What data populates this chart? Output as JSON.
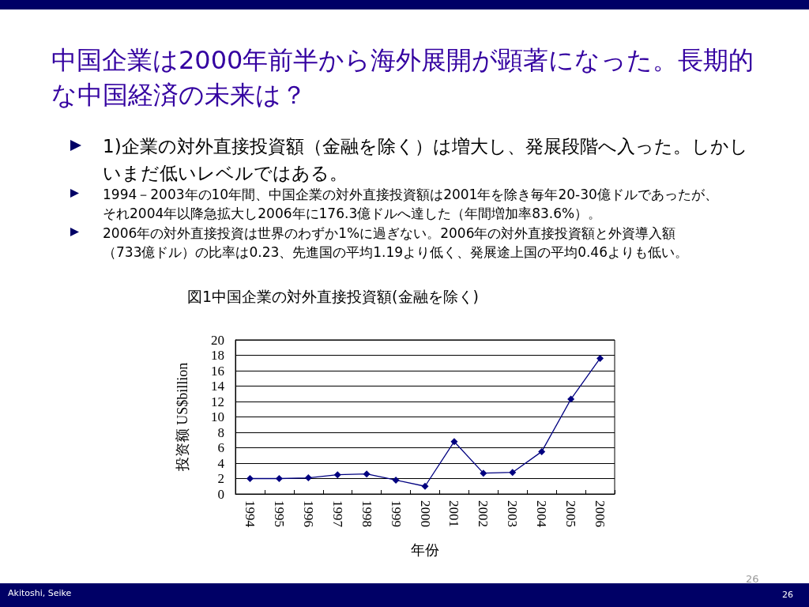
{
  "chart_data": {
    "type": "line",
    "title": "中国企業は2000年前半から海外展開が顕著になった。長期的な中国経済の未来は？",
    "subtitle": "図1中国企業の対外直接投資額(金融を除く)",
    "annotations": [
      "1)企業の対外直接投資額（金融を除く）は増大し、発展段階へ入った。しかしいまだ低いレベルではある。",
      "1994－2003年の10年間、中国企業の対外直接投資額は2001年を除き毎年20-30億ドルであったが、それ2004年以降急拡大し2006年に176.3億ドルへ達した（年間増加率83.6%）。",
      "2006年の対外直接投資は世界のわずか1%に過ぎない。2006年の対外直接投資額と外資導入額（733億ドル）の比率は0.23、先進国の平均1.19より低く、発展途上国の平均0.46よりも低い。",
      "Akitoshi, Seike",
      "26",
      "26"
    ],
    "xlabel": "年份",
    "ylabel": "投资额 US$billion",
    "categories": [
      "1994",
      "1995",
      "1996",
      "1997",
      "1998",
      "1999",
      "2000",
      "2001",
      "2002",
      "2003",
      "2004",
      "2005",
      "2006"
    ],
    "series": [
      {
        "color": "#000080",
        "values": [
          2.0,
          2.0,
          2.1,
          2.5,
          2.6,
          1.8,
          1.0,
          6.8,
          2.7,
          2.8,
          5.5,
          12.3,
          17.6
        ]
      }
    ],
    "ylim": [
      0,
      20
    ],
    "yticks": [
      0,
      2,
      4,
      6,
      8,
      10,
      12,
      14,
      16,
      18,
      20
    ],
    "grid": "y",
    "marker": "diamond",
    "line_style": "solid"
  }
}
